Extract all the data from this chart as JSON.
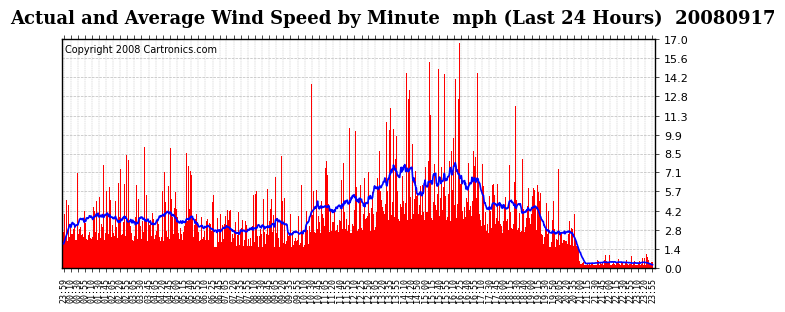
{
  "title": "Actual and Average Wind Speed by Minute  mph (Last 24 Hours)  20080917",
  "copyright": "Copyright 2008 Cartronics.com",
  "yticks": [
    0.0,
    1.4,
    2.8,
    4.2,
    5.7,
    7.1,
    8.5,
    9.9,
    11.3,
    12.8,
    14.2,
    15.6,
    17.0
  ],
  "ylim": [
    0.0,
    17.0
  ],
  "bar_color": "#ff0000",
  "line_color": "#0000ff",
  "bg_color": "#ffffff",
  "grid_color": "#bbbbbb",
  "title_fontsize": 13,
  "copyright_fontsize": 7,
  "xtick_fontsize": 6.0,
  "ytick_fontsize": 8,
  "num_minutes": 1440,
  "seed": 42,
  "x_labels": [
    "23:59",
    "00:10",
    "00:30",
    "00:55",
    "01:10",
    "01:30",
    "01:45",
    "02:05",
    "02:20",
    "02:55",
    "03:05",
    "03:30",
    "03:45",
    "04:05",
    "04:20",
    "04:45",
    "05:00",
    "05:15",
    "05:40",
    "05:55",
    "06:10",
    "06:25",
    "06:45",
    "07:05",
    "07:20",
    "07:35",
    "07:55",
    "08:10",
    "08:30",
    "08:45",
    "09:05",
    "09:20",
    "09:35",
    "09:55",
    "10:10",
    "10:30",
    "10:45",
    "11:05",
    "11:20",
    "11:40",
    "11:55",
    "12:10",
    "12:25",
    "12:50",
    "13:05",
    "13:20",
    "13:35",
    "13:55",
    "14:10",
    "14:20",
    "14:50",
    "15:00",
    "15:15",
    "15:40",
    "15:55",
    "16:10",
    "16:25",
    "16:40",
    "16:55",
    "17:10",
    "17:30",
    "17:45",
    "18:00",
    "18:15",
    "18:30",
    "18:40",
    "19:00",
    "19:15",
    "19:30",
    "19:50",
    "20:05",
    "20:20",
    "20:35",
    "21:00",
    "21:15",
    "21:30",
    "21:45",
    "22:00",
    "22:15",
    "22:30",
    "22:55",
    "23:10",
    "23:20",
    "23:55"
  ]
}
